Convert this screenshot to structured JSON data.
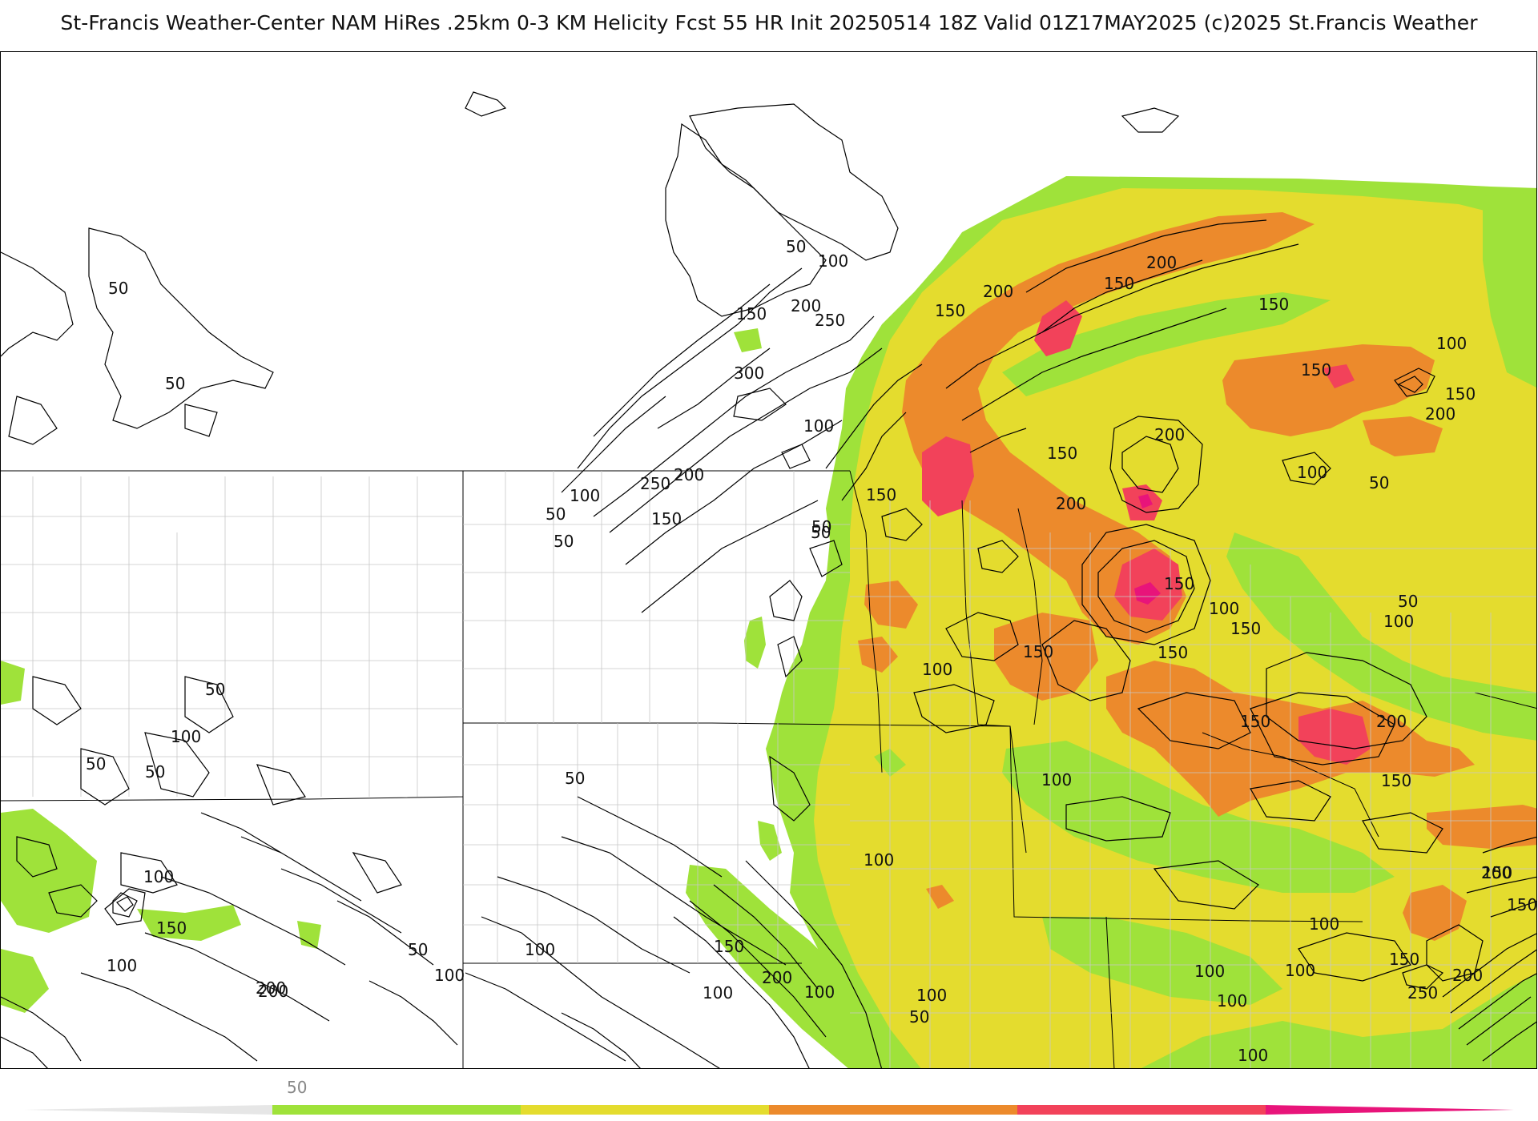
{
  "header": {
    "title": "St-Francis Weather-Center NAM HiRes .25km 0-3 KM Helicity Fcst 55 HR Init 20250514 18Z  Valid 01Z17MAY2025    (c)2025 St.Francis Weather"
  },
  "colors": {
    "green": "#9fe23a",
    "yellow": "#e4dc2e",
    "orange": "#ec8a2c",
    "red": "#f2425a",
    "magenta": "#e8147a",
    "contour": "#000000",
    "county": "#cccccc"
  },
  "legend": {
    "min_label": "50",
    "bins": [
      "50-100",
      "100-150",
      "150-200",
      "200-250",
      "250-300",
      "300+"
    ]
  },
  "contour_labels": [
    {
      "text": "50"
    },
    {
      "text": "50"
    },
    {
      "text": "50"
    },
    {
      "text": "100"
    },
    {
      "text": "50"
    },
    {
      "text": "100"
    },
    {
      "text": "150"
    },
    {
      "text": "200"
    },
    {
      "text": "250"
    },
    {
      "text": "300"
    },
    {
      "text": "100"
    },
    {
      "text": "200"
    },
    {
      "text": "250"
    },
    {
      "text": "100"
    },
    {
      "text": "50"
    },
    {
      "text": "150"
    },
    {
      "text": "50"
    },
    {
      "text": "50"
    },
    {
      "text": "200"
    },
    {
      "text": "150"
    },
    {
      "text": "200"
    },
    {
      "text": "150"
    },
    {
      "text": "150"
    },
    {
      "text": "100"
    },
    {
      "text": "150"
    },
    {
      "text": "200"
    },
    {
      "text": "150"
    },
    {
      "text": "150"
    },
    {
      "text": "200"
    },
    {
      "text": "100"
    },
    {
      "text": "50"
    },
    {
      "text": "200"
    },
    {
      "text": "50"
    },
    {
      "text": "100"
    },
    {
      "text": "150"
    },
    {
      "text": "150"
    },
    {
      "text": "100"
    },
    {
      "text": "150"
    },
    {
      "text": "150"
    },
    {
      "text": "50"
    },
    {
      "text": "100"
    },
    {
      "text": "100"
    },
    {
      "text": "50"
    },
    {
      "text": "100"
    },
    {
      "text": "50"
    },
    {
      "text": "150"
    },
    {
      "text": "100"
    },
    {
      "text": "150"
    },
    {
      "text": "200"
    },
    {
      "text": "50"
    },
    {
      "text": "150"
    },
    {
      "text": "50"
    },
    {
      "text": "100"
    },
    {
      "text": "150"
    },
    {
      "text": "200"
    },
    {
      "text": "150"
    },
    {
      "text": "100"
    },
    {
      "text": "200"
    },
    {
      "text": "100"
    },
    {
      "text": "150"
    },
    {
      "text": "100"
    },
    {
      "text": "50"
    },
    {
      "text": "200"
    },
    {
      "text": "100"
    },
    {
      "text": "100"
    },
    {
      "text": "100"
    },
    {
      "text": "150"
    },
    {
      "text": "50"
    },
    {
      "text": "100"
    },
    {
      "text": "150"
    },
    {
      "text": "200"
    },
    {
      "text": "250"
    },
    {
      "text": "100"
    },
    {
      "text": "100"
    },
    {
      "text": "100"
    },
    {
      "text": "100"
    },
    {
      "text": "200"
    }
  ]
}
